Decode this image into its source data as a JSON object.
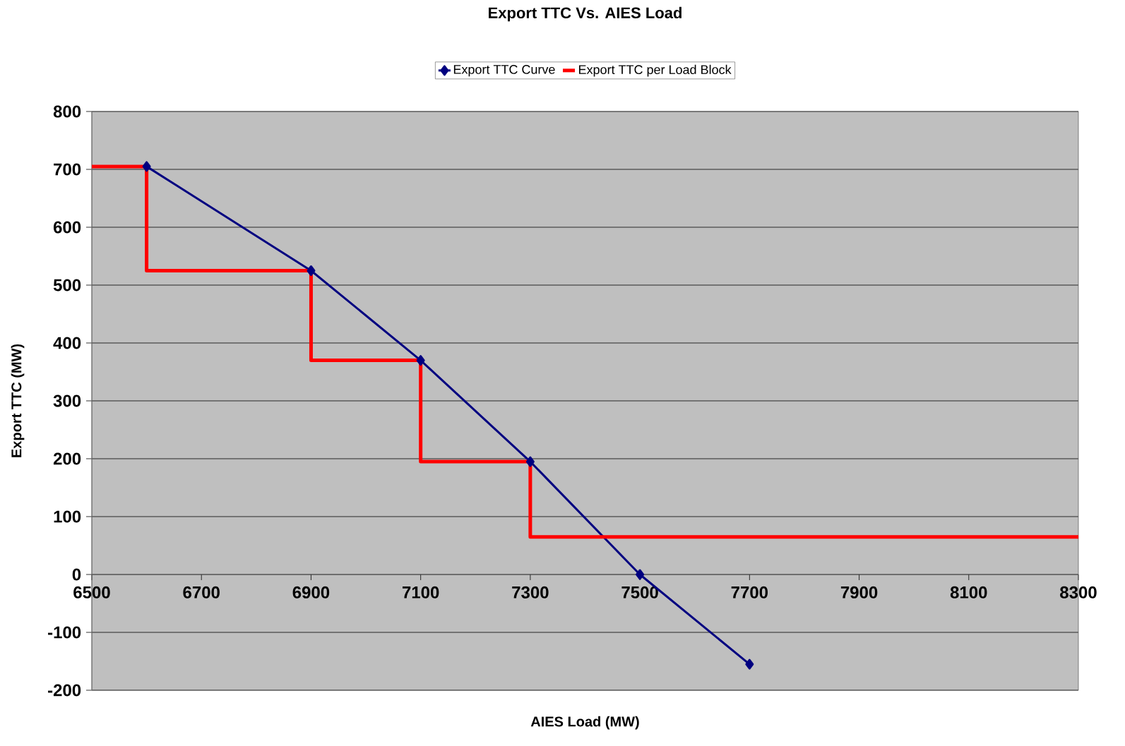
{
  "chart_data": {
    "type": "line",
    "title": "Export TTC Vs. AIES Load",
    "xlabel": "AIES Load (MW)",
    "ylabel": "Export TTC (MW)",
    "xlim": [
      6500,
      8300
    ],
    "xticks": [
      6500,
      6700,
      6900,
      7100,
      7300,
      7500,
      7700,
      7900,
      8100,
      8300
    ],
    "ylim": [
      -200,
      800
    ],
    "yticks": [
      -200,
      -100,
      0,
      100,
      200,
      300,
      400,
      500,
      600,
      700,
      800
    ],
    "grid": "y",
    "legend": "top",
    "series": [
      {
        "name": "Export TTC Curve",
        "color": "#000080",
        "marker": "diamond",
        "x": [
          6600,
          6900,
          7100,
          7300,
          7500,
          7700
        ],
        "values": [
          705,
          525,
          370,
          195,
          0,
          -155
        ]
      },
      {
        "name": "Export TTC per Load Block",
        "type": "step",
        "color": "#ff0000",
        "marker": "none",
        "x": [
          6500,
          6600,
          6900,
          7100,
          7300,
          8300
        ],
        "values": [
          705,
          525,
          370,
          195,
          65,
          65
        ]
      }
    ]
  }
}
